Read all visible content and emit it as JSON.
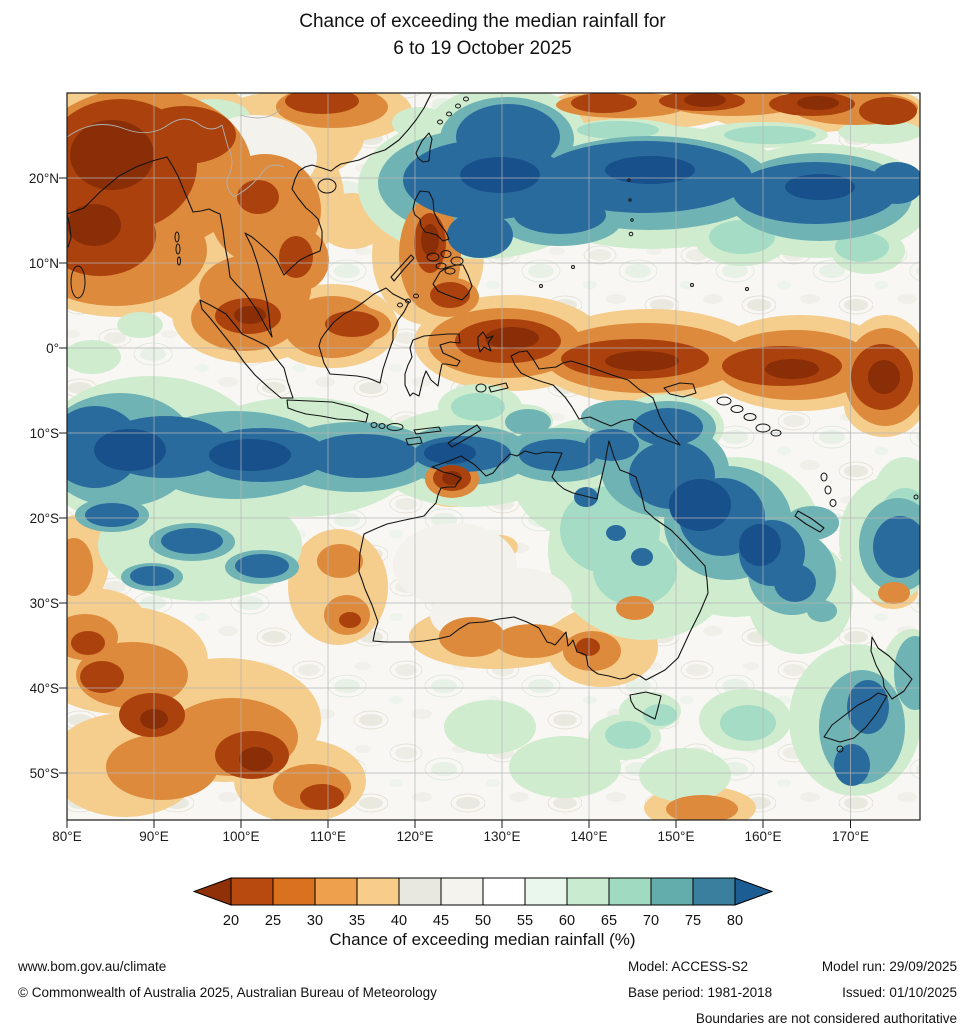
{
  "title": {
    "line1": "Chance of exceeding the median rainfall for",
    "line2": "6 to 19 October 2025"
  },
  "map": {
    "lat_ticks": [
      "20°N",
      "10°N",
      "0°",
      "10°S",
      "20°S",
      "30°S",
      "40°S",
      "50°S"
    ],
    "lon_ticks": [
      "80°E",
      "90°E",
      "100°E",
      "110°E",
      "120°E",
      "130°E",
      "140°E",
      "150°E",
      "160°E",
      "170°E"
    ]
  },
  "legend": {
    "title": "Chance of exceeding median rainfall (%)",
    "tick_labels": [
      "20",
      "25",
      "30",
      "35",
      "40",
      "45",
      "50",
      "55",
      "60",
      "65",
      "70",
      "75",
      "80"
    ],
    "colors": [
      "#8f3009",
      "#b84a10",
      "#d8721f",
      "#eea04d",
      "#f8cd8a",
      "#e8e7e0",
      "#f4f3ee",
      "#ffffff",
      "#e9f7ec",
      "#c9ecd1",
      "#9fdac1",
      "#63adad",
      "#3a7f9e",
      "#1c5d94"
    ]
  },
  "footer": {
    "website": "www.bom.gov.au/climate",
    "copyright": "© Commonwealth of Australia 2025, Australian Bureau of Meteorology",
    "model": "Model: ACCESS-S2",
    "model_run": "Model run: 29/09/2025",
    "base_period": "Base period: 1981-2018",
    "issued": "Issued: 01/10/2025",
    "disclaimer": "Boundaries are not considered authoritative"
  }
}
